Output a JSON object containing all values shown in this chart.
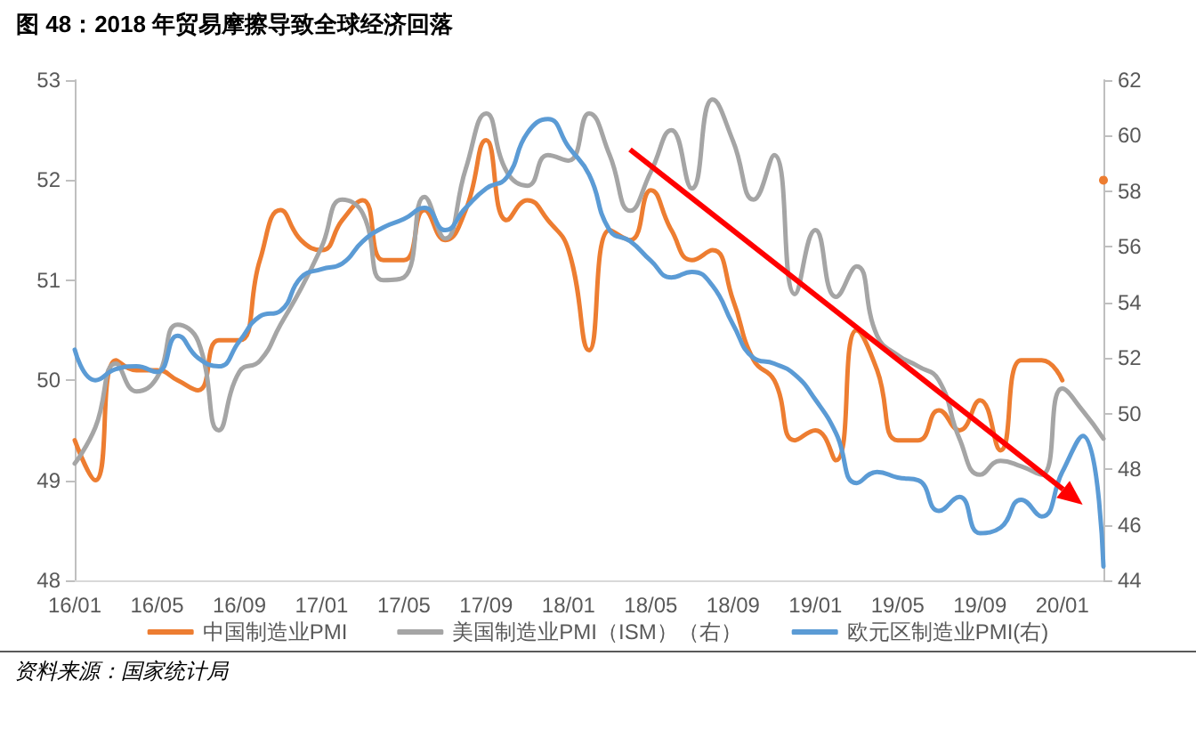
{
  "chart_data": {
    "type": "line",
    "title": "图 48：2018 年贸易摩擦导致全球经济回落",
    "categories": [
      "16/01",
      null,
      null,
      null,
      "16/05",
      null,
      null,
      null,
      "16/09",
      null,
      null,
      null,
      "17/01",
      null,
      null,
      null,
      "17/05",
      null,
      null,
      null,
      "17/09",
      null,
      null,
      null,
      "18/01",
      null,
      null,
      null,
      "18/05",
      null,
      null,
      null,
      "18/09",
      null,
      null,
      null,
      "19/01",
      null,
      null,
      null,
      "19/05",
      null,
      null,
      null,
      "19/09",
      null,
      null,
      null,
      "20/01",
      null,
      null
    ],
    "series": [
      {
        "name": "中国制造业PMI",
        "color": "#ed7d31",
        "values": [
          49.4,
          49.0,
          50.2,
          50.1,
          50.1,
          50.0,
          49.9,
          50.4,
          50.4,
          51.2,
          51.7,
          51.4,
          51.3,
          51.6,
          51.8,
          51.2,
          51.2,
          51.7,
          51.4,
          51.7,
          52.4,
          51.6,
          51.8,
          51.6,
          51.3,
          50.3,
          51.5,
          51.4,
          51.9,
          51.5,
          51.2,
          51.3,
          50.8,
          50.2,
          50.0,
          49.4,
          49.5,
          49.2,
          50.5,
          50.1,
          49.4,
          49.4,
          49.7,
          49.5,
          49.8,
          49.3,
          50.2,
          50.2,
          50.0,
          null,
          52.0
        ]
      },
      {
        "name": "美国制造业PMI（ISM）（右）",
        "color": "#a5a5a5",
        "axis": "y2",
        "values": [
          48.2,
          49.5,
          51.8,
          50.8,
          51.3,
          53.2,
          52.6,
          49.4,
          51.5,
          51.9,
          53.2,
          54.5,
          56.0,
          57.7,
          57.2,
          54.8,
          54.9,
          57.8,
          56.3,
          58.8,
          60.8,
          58.7,
          58.2,
          59.3,
          59.1,
          60.8,
          59.3,
          57.3,
          58.7,
          60.2,
          58.1,
          61.3,
          59.8,
          57.7,
          59.3,
          54.3,
          56.6,
          54.2,
          55.3,
          52.8,
          52.1,
          51.7,
          51.2,
          49.1,
          47.8,
          48.3,
          48.1,
          47.8,
          50.9,
          50.1,
          49.1
        ]
      },
      {
        "name": "欧元区制造业PMI(右)",
        "color": "#5b9bd5",
        "axis": "y2",
        "values": [
          52.3,
          51.2,
          51.6,
          51.7,
          51.5,
          52.8,
          52.0,
          51.7,
          52.6,
          53.5,
          53.7,
          54.9,
          55.2,
          55.4,
          56.2,
          56.7,
          57.0,
          57.4,
          56.6,
          57.4,
          58.1,
          58.5,
          60.1,
          60.6,
          59.6,
          58.6,
          56.6,
          56.2,
          55.5,
          54.9,
          55.1,
          54.6,
          53.2,
          52.0,
          51.8,
          51.4,
          50.5,
          49.3,
          47.5,
          47.9,
          47.7,
          47.6,
          46.5,
          47.0,
          45.7,
          45.9,
          46.9,
          46.3,
          47.9,
          49.2,
          44.5
        ]
      }
    ],
    "ylim": [
      48,
      53
    ],
    "yticks": [
      48,
      49,
      50,
      51,
      52,
      53
    ],
    "y2lim": [
      44,
      62
    ],
    "y2ticks": [
      44,
      46,
      48,
      50,
      52,
      54,
      56,
      58,
      60,
      62
    ],
    "grid": false,
    "legend": "bottom",
    "marker": "none",
    "line_style": "solid",
    "annotations": [
      "资料来源：国家统计局"
    ]
  }
}
